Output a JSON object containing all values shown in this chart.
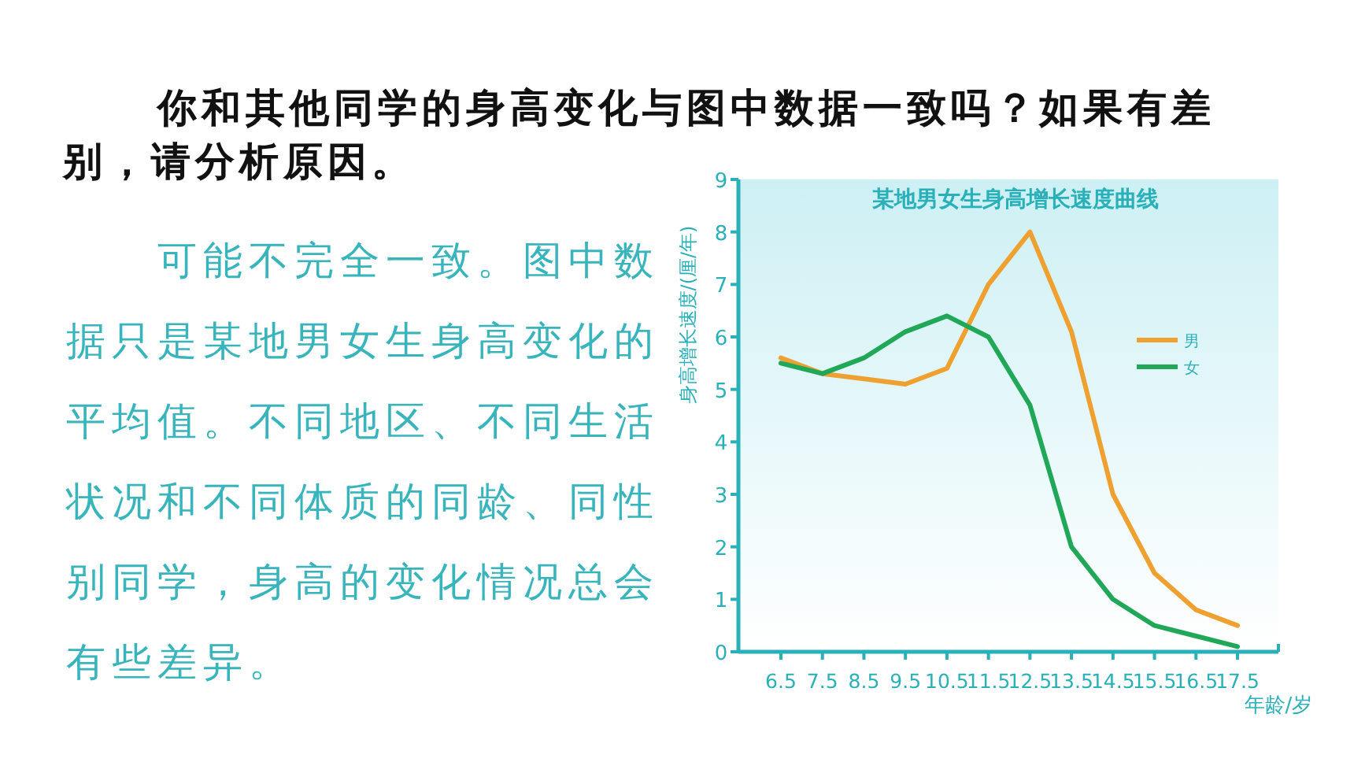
{
  "chart_data": {
    "type": "line",
    "title": "某地男女生身高增长速度曲线",
    "xlabel": "年龄/岁",
    "ylabel": "身高增长速度/(厘/年)",
    "categories": [
      "6.5",
      "7.5",
      "8.5",
      "9.5",
      "10.5",
      "11.5",
      "12.5",
      "13.5",
      "14.5",
      "15.5",
      "16.5",
      "17.5"
    ],
    "series": [
      {
        "name": "男",
        "color": "#eea030",
        "values": [
          5.6,
          5.3,
          5.2,
          5.1,
          5.4,
          7.0,
          8.0,
          6.1,
          3.0,
          1.5,
          0.8,
          0.5
        ]
      },
      {
        "name": "女",
        "color": "#20a858",
        "values": [
          5.5,
          5.3,
          5.6,
          6.1,
          6.4,
          6.0,
          4.7,
          2.0,
          1.0,
          0.5,
          0.3,
          0.1
        ]
      }
    ],
    "ylim": [
      0,
      9
    ],
    "yticks": [
      0,
      1,
      2,
      3,
      4,
      5,
      6,
      7,
      8,
      9
    ],
    "grid": false,
    "legend": "right",
    "marker": "none",
    "line_style": "solid",
    "annotations": [
      "你和其他同学的身高变化与图中数据一致吗？如果有差别，请分析原因。",
      "可能不完全一致。图中数据只是某地男女生身高变化的平均值。不同地区、不同生活状况和不同体质的同龄、同性别同学，身高的变化情况总会有些差异。"
    ]
  }
}
